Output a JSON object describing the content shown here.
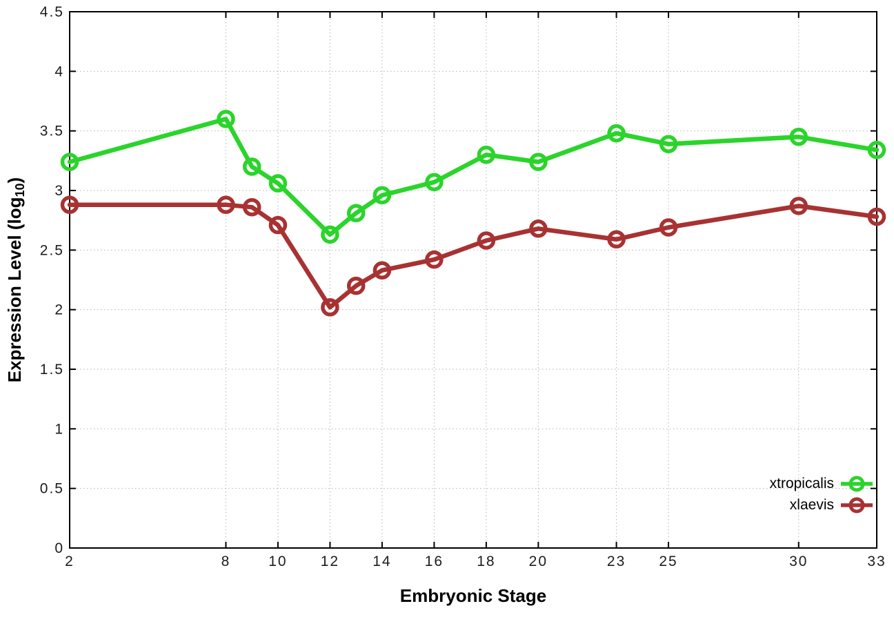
{
  "chart_data": {
    "type": "line",
    "title": "",
    "xlabel": "Embryonic Stage",
    "ylabel": "Expression Level (log10)",
    "ylabel_pre": "Expression Level (log",
    "ylabel_sub": "10",
    "ylabel_post": ")",
    "x": [
      2,
      8,
      9,
      10,
      12,
      13,
      14,
      16,
      18,
      20,
      23,
      25,
      30,
      33
    ],
    "series": [
      {
        "name": "xtropicalis",
        "color": "#2bd42b",
        "values": [
          3.24,
          3.6,
          3.2,
          3.06,
          2.63,
          2.81,
          2.96,
          3.07,
          3.3,
          3.24,
          3.48,
          3.39,
          3.45,
          3.34
        ]
      },
      {
        "name": "xlaevis",
        "color": "#a83232",
        "values": [
          2.88,
          2.88,
          2.86,
          2.71,
          2.02,
          2.2,
          2.33,
          2.42,
          2.58,
          2.68,
          2.59,
          2.69,
          2.87,
          2.78
        ]
      }
    ],
    "xlim": [
      2,
      33
    ],
    "ylim": [
      0,
      4.5
    ],
    "xticks": [
      2,
      8,
      10,
      12,
      14,
      16,
      18,
      20,
      23,
      25,
      30,
      33
    ],
    "yticks": [
      0,
      0.5,
      1,
      1.5,
      2,
      2.5,
      3,
      3.5,
      4,
      4.5
    ],
    "ytick_labels": [
      "0",
      "0.5",
      "1",
      "1.5",
      "2",
      "2.5",
      "3",
      "3.5",
      "4",
      "4.5"
    ],
    "grid": true,
    "legend_position": "inside bottom-right",
    "axis_color": "#000000",
    "grid_color": "#b3b3b3",
    "background": "#ffffff"
  }
}
